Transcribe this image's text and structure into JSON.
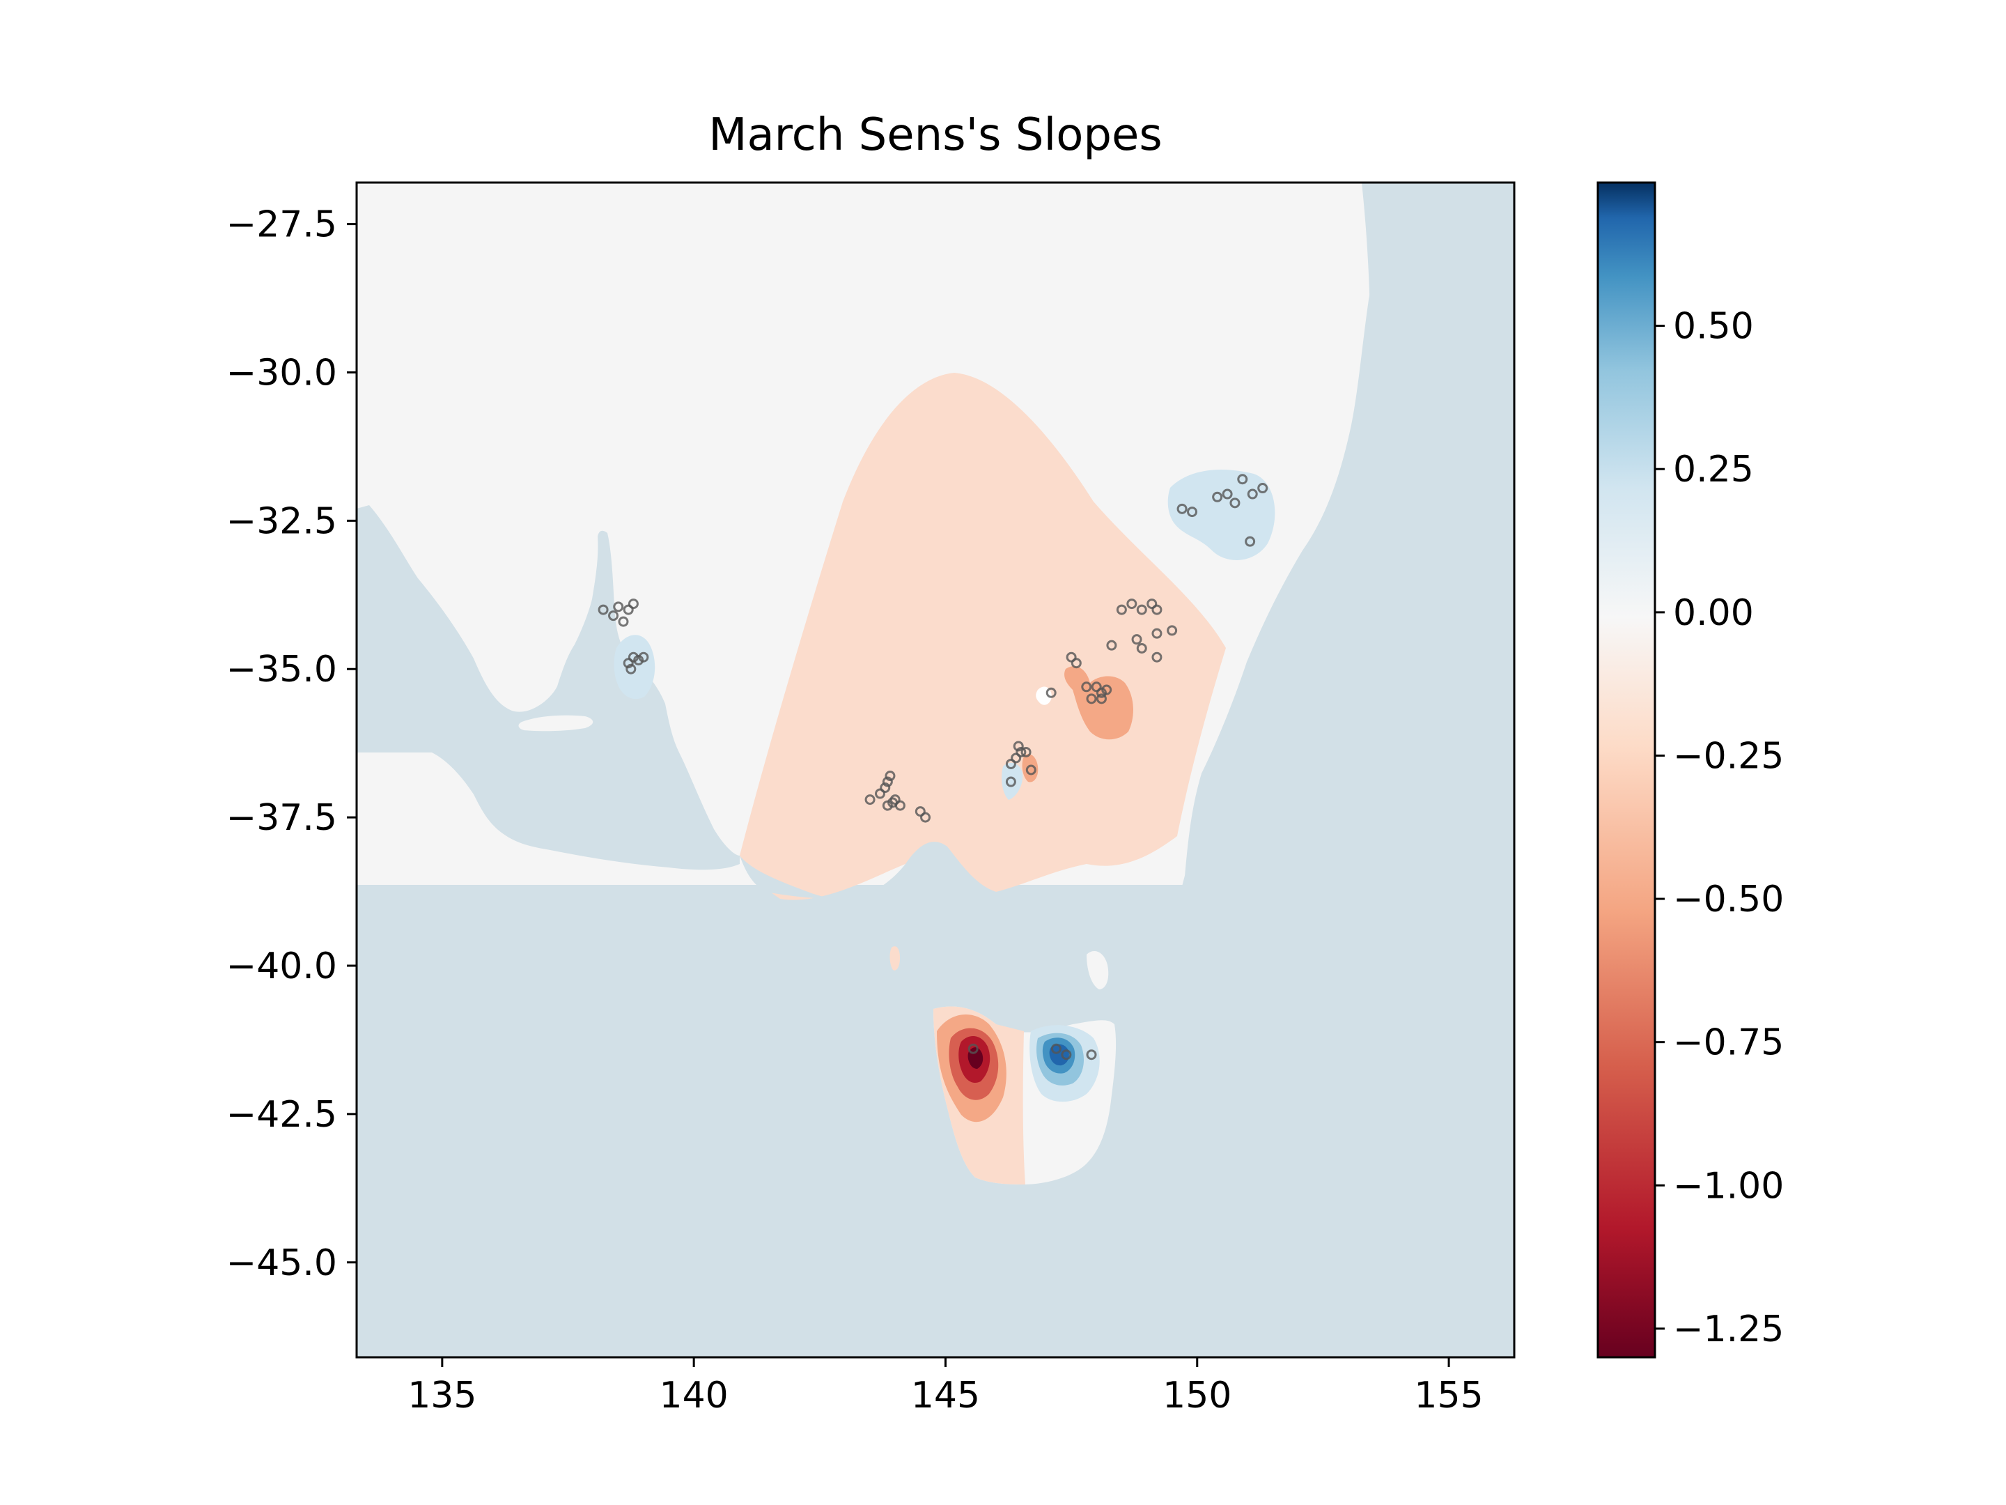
{
  "chart_data": {
    "type": "heatmap",
    "title": "March Sens's Slopes",
    "xlabel": "",
    "ylabel": "",
    "xlim": [
      133.3,
      156.3
    ],
    "ylim": [
      -46.6,
      -26.8
    ],
    "x_ticks": [
      135,
      140,
      145,
      150,
      155
    ],
    "x_tick_labels": [
      "135",
      "140",
      "145",
      "150",
      "155"
    ],
    "y_ticks": [
      -27.5,
      -30.0,
      -32.5,
      -35.0,
      -37.5,
      -40.0,
      -42.5,
      -45.0
    ],
    "y_tick_labels": [
      "−27.5",
      "−30.0",
      "−32.5",
      "−35.0",
      "−37.5",
      "−40.0",
      "−42.5",
      "−45.0"
    ],
    "colorbar": {
      "colormap": "RdBu",
      "range": [
        -1.3,
        0.75
      ],
      "ticks": [
        0.5,
        0.25,
        0.0,
        -0.25,
        -0.5,
        -0.75,
        -1.0,
        -1.25
      ],
      "tick_labels": [
        "0.50",
        "0.25",
        "0.00",
        "−0.25",
        "−0.50",
        "−0.75",
        "−1.00",
        "−1.25"
      ]
    },
    "colors": {
      "ocean": "#d2e0e7",
      "neutral": "#f5f5f5",
      "light_neg": "#fbdccc",
      "mid_neg": "#f4a886",
      "strong_neg": "#d75f51",
      "very_neg": "#b2182b",
      "extreme_neg": "#67001f",
      "light_pos": "#d1e5f0",
      "mid_pos": "#92c5de",
      "strong_pos": "#4393c3",
      "very_pos": "#2166ac",
      "station": "#555555"
    },
    "stations": [
      [
        138.2,
        -34.0
      ],
      [
        138.4,
        -34.1
      ],
      [
        138.6,
        -34.2
      ],
      [
        138.7,
        -34.0
      ],
      [
        138.8,
        -33.9
      ],
      [
        138.5,
        -33.95
      ],
      [
        138.7,
        -34.9
      ],
      [
        138.8,
        -34.8
      ],
      [
        138.9,
        -34.85
      ],
      [
        139.0,
        -34.8
      ],
      [
        138.75,
        -35.0
      ],
      [
        143.5,
        -37.2
      ],
      [
        143.7,
        -37.1
      ],
      [
        143.8,
        -37.0
      ],
      [
        143.9,
        -36.8
      ],
      [
        143.85,
        -37.3
      ],
      [
        144.0,
        -37.2
      ],
      [
        144.1,
        -37.3
      ],
      [
        143.95,
        -37.25
      ],
      [
        144.5,
        -37.4
      ],
      [
        144.6,
        -37.5
      ],
      [
        143.85,
        -36.9
      ],
      [
        146.3,
        -36.6
      ],
      [
        146.4,
        -36.5
      ],
      [
        146.5,
        -36.4
      ],
      [
        146.6,
        -36.4
      ],
      [
        146.45,
        -36.3
      ],
      [
        146.3,
        -36.9
      ],
      [
        146.7,
        -36.7
      ],
      [
        147.1,
        -35.4
      ],
      [
        147.5,
        -34.8
      ],
      [
        147.6,
        -34.9
      ],
      [
        147.8,
        -35.3
      ],
      [
        148.0,
        -35.3
      ],
      [
        148.1,
        -35.4
      ],
      [
        148.2,
        -35.35
      ],
      [
        148.1,
        -35.5
      ],
      [
        147.9,
        -35.5
      ],
      [
        148.3,
        -34.6
      ],
      [
        148.5,
        -34.0
      ],
      [
        148.7,
        -33.9
      ],
      [
        148.9,
        -34.0
      ],
      [
        149.1,
        -33.9
      ],
      [
        149.2,
        -34.0
      ],
      [
        148.8,
        -34.5
      ],
      [
        148.9,
        -34.65
      ],
      [
        149.2,
        -34.4
      ],
      [
        149.5,
        -34.35
      ],
      [
        149.2,
        -34.8
      ],
      [
        149.7,
        -32.3
      ],
      [
        149.9,
        -32.35
      ],
      [
        150.4,
        -32.1
      ],
      [
        150.6,
        -32.05
      ],
      [
        150.75,
        -32.2
      ],
      [
        150.9,
        -31.8
      ],
      [
        151.1,
        -32.05
      ],
      [
        151.3,
        -31.95
      ],
      [
        151.05,
        -32.85
      ],
      [
        145.55,
        -41.4
      ],
      [
        147.2,
        -41.4
      ],
      [
        147.4,
        -41.5
      ],
      [
        147.9,
        -41.5
      ]
    ]
  }
}
